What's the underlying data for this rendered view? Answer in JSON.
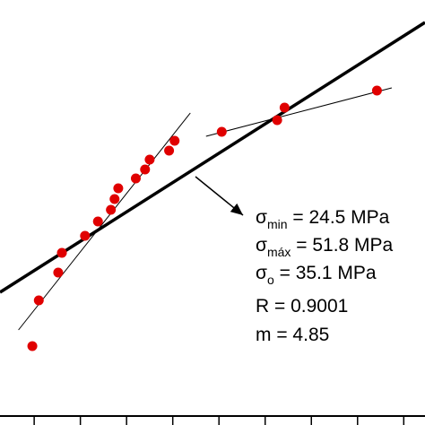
{
  "chart_data": {
    "type": "scatter",
    "x": [
      -0.02,
      0.05,
      0.26,
      0.3,
      0.55,
      0.69,
      0.83,
      0.87,
      0.91,
      1.1,
      1.2,
      1.25,
      1.46,
      1.52,
      2.03,
      2.63,
      2.71,
      3.71
    ],
    "series": [
      {
        "color": "#e00000",
        "values": [
          0.88,
          1.39,
          1.7,
          1.92,
          2.11,
          2.27,
          2.4,
          2.52,
          2.64,
          2.75,
          2.85,
          2.96,
          3.06,
          3.17,
          3.27,
          3.4,
          3.54,
          3.73
        ]
      }
    ],
    "fit_lines": [
      {
        "x": [
          -0.37,
          4.23
        ],
        "y": [
          1.48,
          4.49
        ],
        "width": 3.5
      },
      {
        "x": [
          -0.17,
          1.69
        ],
        "y": [
          1.06,
          3.48
        ],
        "width": 1
      },
      {
        "x": [
          1.86,
          3.87
        ],
        "y": [
          3.22,
          3.76
        ],
        "width": 1
      }
    ],
    "xlim": [
      -0.37,
      4.23
    ],
    "ylim": [
      0,
      4.74
    ],
    "xticks": [
      0,
      0.5,
      1,
      1.5,
      2,
      2.5,
      3,
      3.5,
      4
    ],
    "annotation": [
      {
        "symbol": "σ",
        "subscript": "min",
        "text": " = 24.5 MPa"
      },
      {
        "symbol": "σ",
        "subscript": "máx",
        "text": " = 51.8 MPa"
      },
      {
        "symbol": "σ",
        "subscript": "o",
        "text": " = 35.1 MPa"
      },
      {
        "text": "R = 0.9001"
      },
      {
        "text": "m = 4.85"
      }
    ]
  }
}
